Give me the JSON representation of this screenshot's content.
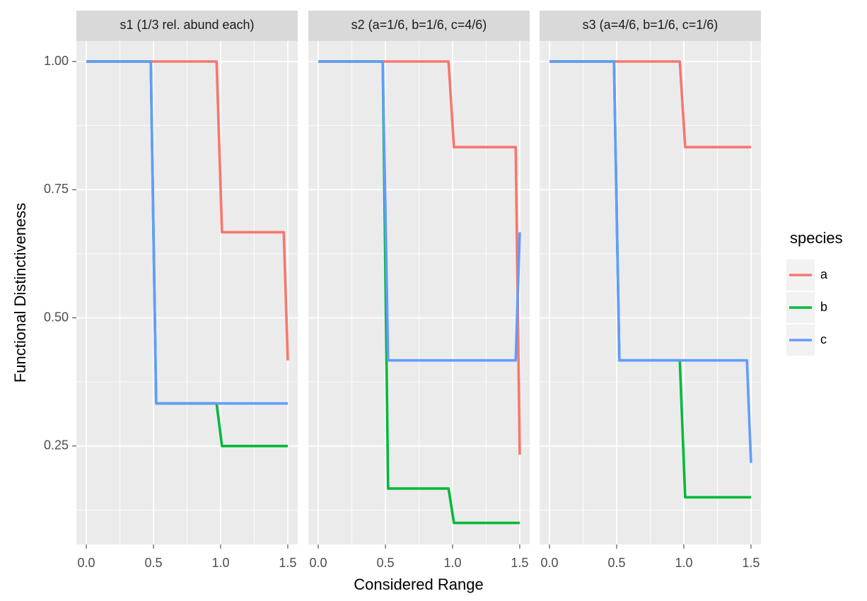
{
  "chart_data": {
    "type": "line",
    "xlabel": "Considered Range",
    "ylabel": "Functional Distinctiveness",
    "legend_title": "species",
    "xlim": [
      -0.074,
      1.574
    ],
    "ylim": [
      0.058,
      1.04
    ],
    "xticks": [
      {
        "value": 0,
        "label": "0.0"
      },
      {
        "value": 0.5,
        "label": "0.5"
      },
      {
        "value": 1,
        "label": "1.0"
      },
      {
        "value": 1.5,
        "label": "1.5"
      }
    ],
    "yticks": [
      {
        "value": 0.25,
        "label": "0.25"
      },
      {
        "value": 0.5,
        "label": "0.50"
      },
      {
        "value": 0.75,
        "label": "0.75"
      },
      {
        "value": 1,
        "label": "1.00"
      }
    ],
    "grid": true,
    "series": [
      {
        "name": "a",
        "color": "#f8766d"
      },
      {
        "name": "b",
        "color": "#00ba38"
      },
      {
        "name": "c",
        "color": "#619cff"
      }
    ],
    "facets": [
      {
        "title": "s1 (1/3 rel. abund each)",
        "x": [
          0,
          0.48,
          0.52,
          0.97,
          1.01,
          1.47,
          1.5
        ],
        "series": [
          {
            "values": [
              1,
              1,
              1,
              1,
              0.667,
              0.667,
              0.417
            ]
          },
          {
            "values": [
              1,
              1,
              0.333,
              0.333,
              0.25,
              0.25,
              0.25
            ]
          },
          {
            "values": [
              1,
              1,
              0.333,
              0.333,
              0.333,
              0.333,
              0.333
            ]
          }
        ]
      },
      {
        "title": "s2 (a=1/6, b=1/6, c=4/6)",
        "x": [
          0,
          0.48,
          0.52,
          0.97,
          1.01,
          1.47,
          1.5
        ],
        "series": [
          {
            "values": [
              1,
              1,
              1,
              1,
              0.833,
              0.833,
              0.233
            ]
          },
          {
            "values": [
              1,
              1,
              0.167,
              0.167,
              0.1,
              0.1,
              0.1
            ]
          },
          {
            "values": [
              1,
              1,
              0.417,
              0.417,
              0.417,
              0.417,
              0.667
            ]
          }
        ]
      },
      {
        "title": "s3 (a=4/6, b=1/6, c=1/6)",
        "x": [
          0,
          0.48,
          0.52,
          0.97,
          1.01,
          1.47,
          1.5
        ],
        "series": [
          {
            "values": [
              1,
              1,
              1,
              1,
              0.833,
              0.833,
              0.833
            ]
          },
          {
            "values": [
              1,
              1,
              0.417,
              0.417,
              0.15,
              0.15,
              0.15
            ]
          },
          {
            "values": [
              1,
              1,
              0.417,
              0.417,
              0.417,
              0.417,
              0.217
            ]
          }
        ]
      }
    ]
  }
}
